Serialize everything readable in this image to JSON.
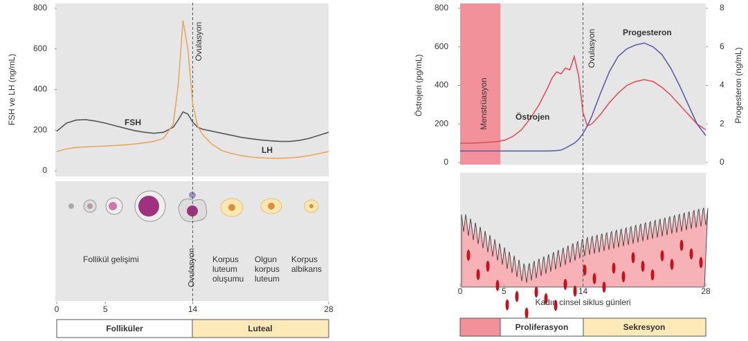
{
  "chart_data": [
    {
      "type": "line",
      "ylabel": "FSH ve LH (ng/mL)",
      "ylim": [
        0,
        800
      ],
      "yticks": [
        0,
        200,
        400,
        600,
        800
      ],
      "xlim": [
        0,
        28
      ],
      "xticks": [
        0,
        5,
        14,
        28
      ],
      "annotation": "Ovulasyon",
      "series": [
        {
          "name": "FSH",
          "color": "#555555",
          "x": [
            0,
            1,
            2,
            3,
            4,
            5,
            6,
            7,
            8,
            9,
            10,
            11,
            12,
            12.5,
            13,
            13.5,
            14,
            14.5,
            15,
            16,
            17,
            18,
            19,
            20,
            21,
            22,
            23,
            24,
            25,
            26,
            27,
            28
          ],
          "values": [
            195,
            235,
            250,
            252,
            245,
            235,
            222,
            210,
            198,
            190,
            185,
            190,
            215,
            250,
            290,
            280,
            240,
            215,
            205,
            195,
            185,
            175,
            165,
            158,
            152,
            148,
            145,
            145,
            150,
            160,
            175,
            190
          ]
        },
        {
          "name": "LH",
          "color": "#e8a85c",
          "x": [
            0,
            1,
            2,
            3,
            4,
            5,
            6,
            7,
            8,
            9,
            10,
            11,
            12,
            12.5,
            13,
            13.5,
            14,
            14.5,
            15,
            16,
            17,
            18,
            19,
            20,
            21,
            22,
            23,
            24,
            25,
            26,
            27,
            28
          ],
          "values": [
            95,
            108,
            115,
            118,
            120,
            122,
            125,
            128,
            132,
            138,
            145,
            160,
            230,
            420,
            740,
            600,
            330,
            220,
            180,
            130,
            100,
            85,
            75,
            68,
            64,
            62,
            62,
            64,
            68,
            75,
            85,
            95
          ]
        }
      ],
      "stages": [
        "Follikül gelişimi",
        "Ovulasyon",
        "Korpus luteum oluşumu",
        "Olgun korpus luteum",
        "Korpus albikans"
      ],
      "phases": [
        "Folliküler",
        "Luteal"
      ]
    },
    {
      "type": "line",
      "ylabel": "Östrojen (pg/mL)",
      "y2label": "Progesteron (ng/mL)",
      "xlabel": "Kadın cinsel siklus günleri",
      "ylim": [
        0,
        800
      ],
      "yticks": [
        0,
        200,
        400,
        600,
        800
      ],
      "y2lim": [
        0,
        8
      ],
      "y2ticks": [
        0,
        2,
        4,
        6,
        8
      ],
      "xlim": [
        0,
        28
      ],
      "xticks": [
        0,
        5,
        14,
        28
      ],
      "annotations": [
        "Menstrüasyon",
        "Ovulasyon"
      ],
      "series": [
        {
          "name": "Östrojen",
          "color": "#e0505a",
          "x": [
            0,
            1,
            2,
            3,
            4,
            5,
            6,
            7,
            8,
            9,
            10,
            10.5,
            11,
            11.5,
            12,
            12.5,
            13,
            13.5,
            14,
            14.5,
            15,
            16,
            17,
            18,
            19,
            20,
            21,
            22,
            23,
            24,
            25,
            26,
            27,
            28
          ],
          "values": [
            100,
            100,
            102,
            105,
            108,
            115,
            135,
            170,
            230,
            300,
            390,
            440,
            470,
            460,
            490,
            480,
            550,
            450,
            260,
            190,
            200,
            250,
            310,
            360,
            400,
            420,
            430,
            420,
            390,
            350,
            300,
            250,
            200,
            170
          ]
        },
        {
          "name": "Progesteron",
          "color": "#5a5fa8",
          "axis": "y2",
          "x": [
            0,
            2,
            4,
            6,
            8,
            10,
            11,
            11.5,
            12,
            13,
            13.5,
            14,
            14.5,
            15,
            16,
            17,
            18,
            19,
            20,
            21,
            22,
            23,
            24,
            25,
            26,
            27,
            28
          ],
          "values": [
            0.6,
            0.6,
            0.6,
            0.6,
            0.6,
            0.6,
            0.62,
            0.65,
            0.75,
            1.0,
            1.2,
            1.5,
            1.9,
            2.4,
            3.6,
            4.7,
            5.5,
            5.9,
            6.1,
            6.2,
            6.0,
            5.6,
            4.9,
            4.0,
            3.0,
            2.0,
            1.4
          ]
        }
      ],
      "phases": [
        "Proliferasyon",
        "Sekresyon"
      ]
    }
  ]
}
